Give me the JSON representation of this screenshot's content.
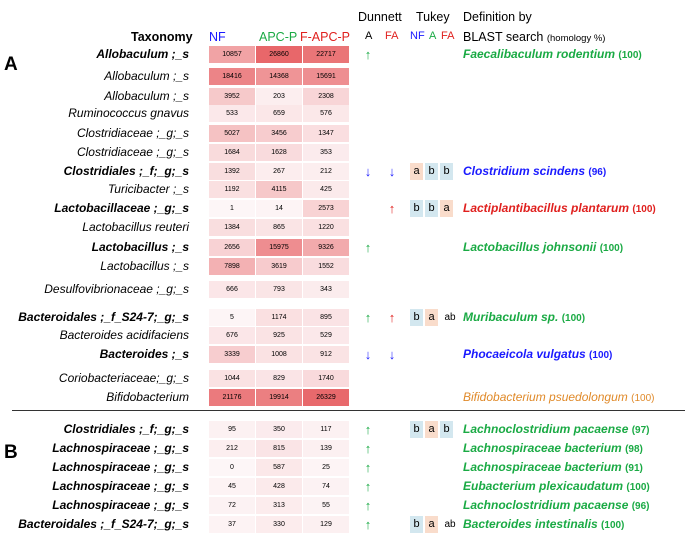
{
  "header": {
    "taxonomy": "Taxonomy",
    "groups": [
      "NF",
      "APC-P",
      "F-APC-P"
    ],
    "group_colors": [
      "#1a1aff",
      "#1aaa44",
      "#e0201e"
    ],
    "dunnett": "Dunnett",
    "tukey": "Tukey",
    "dunnett_cols": [
      "A",
      "FA"
    ],
    "tukey_cols": [
      "NF",
      "A",
      "FA"
    ],
    "definition_line1": "Definition by",
    "definition_line2": "BLAST search",
    "definition_note": "(homology %)"
  },
  "sections": [
    "A",
    "B"
  ],
  "colors": {
    "up": "#1aaa44",
    "down": "#1a1aff",
    "fa_up": "#e0201e",
    "tukey_a": "#f9dccb",
    "tukey_b": "#d3e7ef",
    "heat_max": "#e8676a",
    "heat_min": "#fdf6f7"
  },
  "chart_data": {
    "type": "heatmap",
    "columns": [
      "NF",
      "APC-P",
      "F-APC-P"
    ],
    "rows": [
      {
        "section": "A",
        "taxon": "Allobaculum ;_s",
        "bold": true,
        "values": [
          10857,
          26860,
          22717
        ],
        "dunnett_A": "up",
        "dunnett_FA": "",
        "tukey": [
          "",
          "",
          ""
        ],
        "tukey_colors": [
          "",
          "",
          ""
        ],
        "definition": "Faecalibaculum rodentium",
        "def_score": "(100)",
        "def_color": "#1aaa44"
      },
      {
        "section": "A",
        "taxon": "Allobaculum ;_s",
        "bold": false,
        "values": [
          18416,
          14368,
          15691
        ],
        "dunnett_A": "",
        "dunnett_FA": "",
        "tukey": [
          "",
          "",
          ""
        ],
        "tukey_colors": [
          "",
          "",
          ""
        ],
        "definition": "",
        "def_score": "",
        "def_color": ""
      },
      {
        "section": "A",
        "taxon": "Allobaculum ;_s",
        "bold": false,
        "values": [
          3952,
          203,
          2308
        ],
        "dunnett_A": "",
        "dunnett_FA": "",
        "tukey": [
          "",
          "",
          ""
        ],
        "tukey_colors": [
          "",
          "",
          ""
        ],
        "definition": "",
        "def_score": "",
        "def_color": ""
      },
      {
        "section": "A",
        "taxon": "Ruminococcus gnavus",
        "bold": false,
        "values": [
          533,
          659,
          576
        ],
        "dunnett_A": "",
        "dunnett_FA": "",
        "tukey": [
          "",
          "",
          ""
        ],
        "tukey_colors": [
          "",
          "",
          ""
        ],
        "definition": "",
        "def_score": "",
        "def_color": ""
      },
      {
        "section": "A",
        "taxon": "Clostridiaceae ;_g;_s",
        "bold": false,
        "values": [
          5027,
          3456,
          1347
        ],
        "dunnett_A": "",
        "dunnett_FA": "",
        "tukey": [
          "",
          "",
          ""
        ],
        "tukey_colors": [
          "",
          "",
          ""
        ],
        "definition": "",
        "def_score": "",
        "def_color": ""
      },
      {
        "section": "A",
        "taxon": "Clostridiaceae ;_g;_s",
        "bold": false,
        "values": [
          1684,
          1628,
          353
        ],
        "dunnett_A": "",
        "dunnett_FA": "",
        "tukey": [
          "",
          "",
          ""
        ],
        "tukey_colors": [
          "",
          "",
          ""
        ],
        "definition": "",
        "def_score": "",
        "def_color": ""
      },
      {
        "section": "A",
        "taxon": "Clostridiales ;_f;_g;_s",
        "bold": true,
        "values": [
          1392,
          267,
          212
        ],
        "dunnett_A": "down",
        "dunnett_FA": "down",
        "tukey": [
          "a",
          "b",
          "b"
        ],
        "tukey_colors": [
          "a",
          "b",
          "b"
        ],
        "definition": "Clostridium scindens",
        "def_score": "(96)",
        "def_color": "#1a1aff"
      },
      {
        "section": "A",
        "taxon": "Turicibacter ;_s",
        "bold": false,
        "values": [
          1192,
          4115,
          425
        ],
        "dunnett_A": "",
        "dunnett_FA": "",
        "tukey": [
          "",
          "",
          ""
        ],
        "tukey_colors": [
          "",
          "",
          ""
        ],
        "definition": "",
        "def_score": "",
        "def_color": ""
      },
      {
        "section": "A",
        "taxon": "Lactobacillaceae ;_g;_s",
        "bold": true,
        "values": [
          1,
          14,
          2573
        ],
        "dunnett_A": "",
        "dunnett_FA": "up",
        "tukey": [
          "b",
          "b",
          "a"
        ],
        "tukey_colors": [
          "b",
          "b",
          "a"
        ],
        "definition": "Lactiplantibacillus plantarum",
        "def_score": "(100)",
        "def_color": "#e0201e"
      },
      {
        "section": "A",
        "taxon": "Lactobacillus reuteri",
        "bold": false,
        "values": [
          1384,
          865,
          1220
        ],
        "dunnett_A": "",
        "dunnett_FA": "",
        "tukey": [
          "",
          "",
          ""
        ],
        "tukey_colors": [
          "",
          "",
          ""
        ],
        "definition": "",
        "def_score": "",
        "def_color": ""
      },
      {
        "section": "A",
        "taxon": "Lactobacillus ;_s",
        "bold": true,
        "values": [
          2656,
          15975,
          9326
        ],
        "dunnett_A": "up",
        "dunnett_FA": "",
        "tukey": [
          "",
          "",
          ""
        ],
        "tukey_colors": [
          "",
          "",
          ""
        ],
        "definition": "Lactobacillus johnsonii",
        "def_score": "(100)",
        "def_color": "#1aaa44"
      },
      {
        "section": "A",
        "taxon": "Lactobacillus ;_s",
        "bold": false,
        "values": [
          7898,
          3619,
          1552
        ],
        "dunnett_A": "",
        "dunnett_FA": "",
        "tukey": [
          "",
          "",
          ""
        ],
        "tukey_colors": [
          "",
          "",
          ""
        ],
        "definition": "",
        "def_score": "",
        "def_color": ""
      },
      {
        "section": "A",
        "taxon": "Desulfovibrionaceae ;_g;_s",
        "bold": false,
        "values": [
          666,
          793,
          343
        ],
        "dunnett_A": "",
        "dunnett_FA": "",
        "tukey": [
          "",
          "",
          ""
        ],
        "tukey_colors": [
          "",
          "",
          ""
        ],
        "definition": "",
        "def_score": "",
        "def_color": ""
      },
      {
        "section": "A",
        "taxon": "Bacteroidales ;_f_S24-7;_g;_s",
        "bold": true,
        "values": [
          5,
          1174,
          895
        ],
        "dunnett_A": "up",
        "dunnett_FA": "up_red",
        "tukey": [
          "b",
          "a",
          "ab"
        ],
        "tukey_colors": [
          "b",
          "a",
          ""
        ],
        "definition": "Muribaculum sp.",
        "def_score": "(100)",
        "def_color": "#1aaa44"
      },
      {
        "section": "A",
        "taxon": "Bacteroides acidifaciens",
        "bold": false,
        "values": [
          676,
          925,
          529
        ],
        "dunnett_A": "",
        "dunnett_FA": "",
        "tukey": [
          "",
          "",
          ""
        ],
        "tukey_colors": [
          "",
          "",
          ""
        ],
        "definition": "",
        "def_score": "",
        "def_color": ""
      },
      {
        "section": "A",
        "taxon": "Bacteroides ;_s",
        "bold": true,
        "values": [
          3339,
          1008,
          912
        ],
        "dunnett_A": "down",
        "dunnett_FA": "down",
        "tukey": [
          "",
          "",
          ""
        ],
        "tukey_colors": [
          "",
          "",
          ""
        ],
        "definition": "Phocaeicola vulgatus",
        "def_score": "(100)",
        "def_color": "#1a1aff"
      },
      {
        "section": "A",
        "taxon": "Coriobacteriaceae;_g;_s",
        "bold": false,
        "values": [
          1044,
          829,
          1740
        ],
        "dunnett_A": "",
        "dunnett_FA": "",
        "tukey": [
          "",
          "",
          ""
        ],
        "tukey_colors": [
          "",
          "",
          ""
        ],
        "definition": "",
        "def_score": "",
        "def_color": ""
      },
      {
        "section": "A",
        "taxon": "Bifidobacterium",
        "bold": false,
        "values": [
          21176,
          19914,
          26329
        ],
        "dunnett_A": "",
        "dunnett_FA": "",
        "tukey": [
          "",
          "",
          ""
        ],
        "tukey_colors": [
          "",
          "",
          ""
        ],
        "definition": "Bifidobacterium psuedolongum",
        "def_score": "(100)",
        "def_color": "#e08a2a",
        "def_light": true
      },
      {
        "section": "B",
        "taxon": "Clostridiales ;_f;_g;_s",
        "bold": true,
        "values": [
          95,
          350,
          117
        ],
        "dunnett_A": "up",
        "dunnett_FA": "",
        "tukey": [
          "b",
          "a",
          "b"
        ],
        "tukey_colors": [
          "b",
          "a",
          "b"
        ],
        "definition": "Lachnoclostridium pacaense",
        "def_score": "(97)",
        "def_color": "#1aaa44"
      },
      {
        "section": "B",
        "taxon": "Lachnospiraceae ;_g;_s",
        "bold": true,
        "values": [
          212,
          815,
          139
        ],
        "dunnett_A": "up",
        "dunnett_FA": "",
        "tukey": [
          "",
          "",
          ""
        ],
        "tukey_colors": [
          "",
          "",
          ""
        ],
        "definition": "Lachnospiraceae bacterium",
        "def_score": "(98)",
        "def_color": "#1aaa44"
      },
      {
        "section": "B",
        "taxon": "Lachnospiraceae ;_g;_s",
        "bold": true,
        "values": [
          0,
          587,
          25
        ],
        "dunnett_A": "up",
        "dunnett_FA": "",
        "tukey": [
          "",
          "",
          ""
        ],
        "tukey_colors": [
          "",
          "",
          ""
        ],
        "definition": "Lachnospiraceae bacterium",
        "def_score": "(91)",
        "def_color": "#1aaa44"
      },
      {
        "section": "B",
        "taxon": "Lachnospiraceae ;_g;_s",
        "bold": true,
        "values": [
          45,
          428,
          74
        ],
        "dunnett_A": "up",
        "dunnett_FA": "",
        "tukey": [
          "",
          "",
          ""
        ],
        "tukey_colors": [
          "",
          "",
          ""
        ],
        "definition": "Eubacterium plexicaudatum",
        "def_score": "(100)",
        "def_color": "#1aaa44"
      },
      {
        "section": "B",
        "taxon": "Lachnospiraceae ;_g;_s",
        "bold": true,
        "values": [
          72,
          313,
          55
        ],
        "dunnett_A": "up",
        "dunnett_FA": "",
        "tukey": [
          "",
          "",
          ""
        ],
        "tukey_colors": [
          "",
          "",
          ""
        ],
        "definition": "Lachnoclostridium pacaense",
        "def_score": "(96)",
        "def_color": "#1aaa44"
      },
      {
        "section": "B",
        "taxon": "Bacteroidales ;_f_S24-7;_g;_s",
        "bold": true,
        "values": [
          37,
          330,
          129
        ],
        "dunnett_A": "up",
        "dunnett_FA": "",
        "tukey": [
          "b",
          "a",
          "ab"
        ],
        "tukey_colors": [
          "b",
          "a",
          ""
        ],
        "definition": "Bacteroides intestinalis",
        "def_score": "(100)",
        "def_color": "#1aaa44"
      }
    ]
  }
}
